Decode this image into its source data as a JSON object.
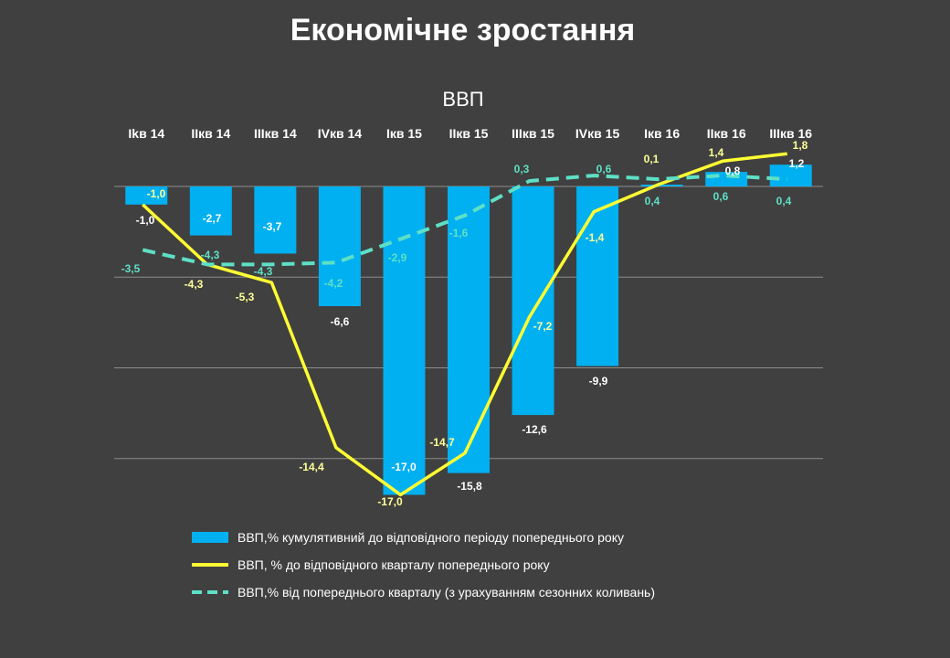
{
  "title": "Економічне зростання",
  "chart_data": {
    "type": "bar",
    "subtitle": "ВВП",
    "categories": [
      "Іkв 14",
      "ІІкв 14",
      "ІІІкв 14",
      "ІVкв 14",
      "Ікв 15",
      "ІІкв 15",
      "ІІІкв 15",
      "ІVкв 15",
      "Ікв 16",
      "ІІкв 16",
      "ІІІкв 16"
    ],
    "ylim": [
      -18,
      3
    ],
    "grid": true,
    "legend_position": "bottom",
    "series": [
      {
        "name": "ВВП,% кумулятивний до відповідного періоду попереднього року",
        "kind": "bar",
        "color": "#00b0f0",
        "values": [
          -1.0,
          -2.7,
          -3.7,
          -6.6,
          -17.0,
          -15.8,
          -12.6,
          -9.9,
          0.1,
          0.8,
          1.2
        ],
        "labels": [
          "-1,0",
          "-2,7",
          "-3,7",
          "-6,6",
          "-17,0",
          "-15,8",
          "-12,6",
          "-9,9",
          "0,1",
          "0,8",
          "1,2"
        ]
      },
      {
        "name": "ВВП, % до відповідного кварталу попереднього року",
        "kind": "line",
        "color": "#ffff33",
        "values": [
          -1.0,
          -4.3,
          -5.3,
          -14.4,
          -17.0,
          -14.7,
          -7.2,
          -1.4,
          0.1,
          1.4,
          1.8
        ],
        "labels": [
          "-1,0",
          "-4,3",
          "-5,3",
          "-14,4",
          "-17,0",
          "-14,7",
          "-7,2",
          "-1,4",
          "0,1",
          "1,4",
          "1,8"
        ]
      },
      {
        "name": "ВВП,% від попереднього кварталу (з урахуванням сезонних коливань)",
        "kind": "dashed-line",
        "color": "#5ee0c6",
        "values": [
          -3.5,
          -4.3,
          -4.3,
          -4.2,
          -2.9,
          -1.6,
          0.3,
          0.6,
          0.4,
          0.6,
          0.4
        ],
        "labels": [
          "-3,5",
          "-4,3",
          "-4,3",
          "-4,2",
          "-2,9",
          "-1,6",
          "0,3",
          "0,6",
          "0,4",
          "0,6",
          "0,4"
        ]
      }
    ]
  }
}
